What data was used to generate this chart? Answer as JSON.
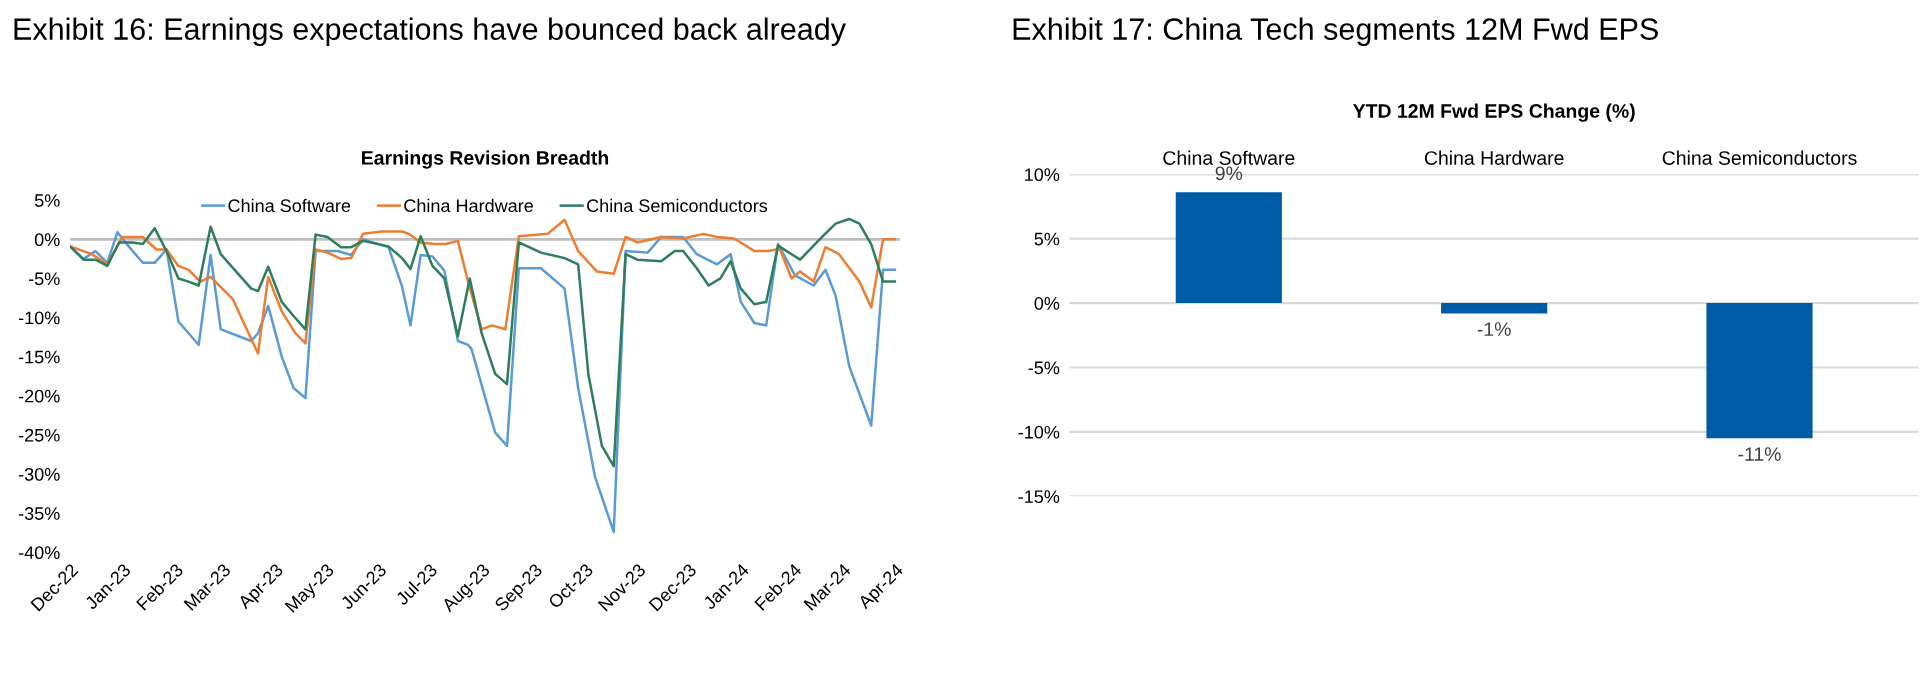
{
  "chart_data": [
    {
      "type": "line",
      "title": "Exhibit 16: Earnings expectations have bounced back already",
      "subtitle": "Earnings Revision Breadth",
      "xlim": [
        "2022-12-01",
        "2024-04-04"
      ],
      "xticks": [
        {
          "value": "2022-12",
          "label": "Dec-22"
        },
        {
          "value": "2023-01",
          "label": "Jan-23"
        },
        {
          "value": "2023-02",
          "label": "Feb-23"
        },
        {
          "value": "2023-03",
          "label": "Mar-23"
        },
        {
          "value": "2023-04",
          "label": "Apr-23"
        },
        {
          "value": "2023-05",
          "label": "May-23"
        },
        {
          "value": "2023-06",
          "label": "Jun-23"
        },
        {
          "value": "2023-07",
          "label": "Jul-23"
        },
        {
          "value": "2023-08",
          "label": "Aug-23"
        },
        {
          "value": "2023-09",
          "label": "Sep-23"
        },
        {
          "value": "2023-10",
          "label": "Oct-23"
        },
        {
          "value": "2023-11",
          "label": "Nov-23"
        },
        {
          "value": "2023-12",
          "label": "Dec-23"
        },
        {
          "value": "2024-01",
          "label": "Jan-24"
        },
        {
          "value": "2024-02",
          "label": "Feb-24"
        },
        {
          "value": "2024-03",
          "label": "Mar-24"
        },
        {
          "value": "2024-04",
          "label": "Apr-24"
        }
      ],
      "ylim": [
        -40,
        5
      ],
      "yticks": [
        {
          "value": 5,
          "label": "5%"
        },
        {
          "value": 0,
          "label": "0%"
        },
        {
          "value": -5,
          "label": "-5%"
        },
        {
          "value": -10,
          "label": "-10%"
        },
        {
          "value": -15,
          "label": "-15%"
        },
        {
          "value": -20,
          "label": "-20%"
        },
        {
          "value": -25,
          "label": "-25%"
        },
        {
          "value": -30,
          "label": "-30%"
        },
        {
          "value": -35,
          "label": "-35%"
        },
        {
          "value": -40,
          "label": "-40%"
        }
      ],
      "ref_lines": [
        {
          "axis": "y",
          "value": 0,
          "color": "#bfbfbf"
        }
      ],
      "legend": "top",
      "grid": false,
      "series": [
        {
          "name": "China Software",
          "color": "#5b9bd5",
          "x": [
            "2022-12-01",
            "2022-12-09",
            "2022-12-16",
            "2022-12-23",
            "2022-12-29",
            "2023-01-05",
            "2023-01-13",
            "2023-01-20",
            "2023-01-27",
            "2023-02-03",
            "2023-02-15",
            "2023-02-22",
            "2023-02-28",
            "2023-03-18",
            "2023-03-22",
            "2023-03-28",
            "2023-04-05",
            "2023-04-12",
            "2023-04-19",
            "2023-04-25",
            "2023-05-08",
            "2023-05-16",
            "2023-05-23",
            "2023-06-07",
            "2023-06-15",
            "2023-06-20",
            "2023-06-26",
            "2023-07-03",
            "2023-07-10",
            "2023-07-18",
            "2023-07-24",
            "2023-07-26",
            "2023-08-09",
            "2023-08-16",
            "2023-08-23",
            "2023-09-05",
            "2023-09-19",
            "2023-09-27",
            "2023-10-07",
            "2023-10-18",
            "2023-10-25",
            "2023-11-07",
            "2023-11-15",
            "2023-11-28",
            "2023-12-06",
            "2023-12-18",
            "2023-12-26",
            "2024-01-01",
            "2024-01-09",
            "2024-01-16",
            "2024-01-23",
            "2024-02-02",
            "2024-02-13",
            "2024-02-20",
            "2024-02-26",
            "2024-03-05",
            "2024-03-18",
            "2024-03-25",
            "2024-04-01"
          ],
          "values": [
            -0.9,
            -2.5,
            -1.5,
            -3,
            0.9,
            -1,
            -3,
            -3,
            -1.3,
            -10.5,
            -13.5,
            -2,
            -11.5,
            -13,
            -12,
            -8.5,
            -15,
            -19,
            -20.3,
            -1.5,
            -1.5,
            -2,
            0,
            -1,
            -6,
            -11,
            -2,
            -2.2,
            -4,
            -13,
            -13.5,
            -14,
            -24.7,
            -26.4,
            -3.7,
            -3.7,
            -6.3,
            -19,
            -30.4,
            -37.4,
            -1.5,
            -1.7,
            0.3,
            0.3,
            -1.9,
            -3.2,
            -1.9,
            -8,
            -10.7,
            -11,
            -0.6,
            -4.6,
            -5.9,
            -3.9,
            -7.2,
            -16.2,
            -23.8,
            -3.9,
            -3.9
          ]
        },
        {
          "name": "China Hardware",
          "color": "#ed7d31",
          "x": [
            "2022-12-01",
            "2022-12-14",
            "2022-12-23",
            "2023-01-01",
            "2023-01-13",
            "2023-01-21",
            "2023-01-27",
            "2023-02-03",
            "2023-02-09",
            "2023-02-16",
            "2023-02-22",
            "2023-03-07",
            "2023-03-22",
            "2023-03-28",
            "2023-04-05",
            "2023-04-13",
            "2023-04-19",
            "2023-04-25",
            "2023-05-02",
            "2023-05-10",
            "2023-05-16",
            "2023-05-23",
            "2023-06-03",
            "2023-06-15",
            "2023-06-19",
            "2023-06-26",
            "2023-07-04",
            "2023-07-11",
            "2023-07-18",
            "2023-07-24",
            "2023-08-01",
            "2023-08-07",
            "2023-08-15",
            "2023-08-23",
            "2023-09-09",
            "2023-09-19",
            "2023-09-27",
            "2023-10-08",
            "2023-10-18",
            "2023-10-25",
            "2023-11-01",
            "2023-11-15",
            "2023-11-28",
            "2023-12-10",
            "2023-12-18",
            "2023-12-28",
            "2024-01-09",
            "2024-01-17",
            "2024-01-24",
            "2024-01-31",
            "2024-02-05",
            "2024-02-13",
            "2024-02-20",
            "2024-02-28",
            "2024-03-11",
            "2024-03-18",
            "2024-03-25",
            "2024-04-01"
          ],
          "values": [
            -0.9,
            -1.9,
            -3.2,
            0.3,
            0.3,
            -1.3,
            -1.3,
            -3.4,
            -3.9,
            -5.4,
            -4.8,
            -7.6,
            -14.6,
            -4.8,
            -9.2,
            -12,
            -13.3,
            -1.3,
            -1.7,
            -2.5,
            -2.4,
            0.7,
            1,
            1,
            0.7,
            -0.4,
            -0.6,
            -0.6,
            -0.2,
            -5.4,
            -11.5,
            -11,
            -11.5,
            0.4,
            0.7,
            2.5,
            -1.5,
            -4.1,
            -4.4,
            0.3,
            -0.4,
            0.3,
            0.1,
            0.7,
            0.3,
            0.1,
            -1.5,
            -1.5,
            -1.2,
            -5,
            -4.1,
            -5.4,
            -1,
            -1.9,
            -5.4,
            -8.7,
            0,
            0
          ]
        },
        {
          "name": "China Semiconductors",
          "color": "#2e7d5b",
          "x": [
            "2022-12-01",
            "2022-12-09",
            "2022-12-16",
            "2022-12-23",
            "2022-12-30",
            "2023-01-07",
            "2023-01-13",
            "2023-01-20",
            "2023-01-27",
            "2023-02-03",
            "2023-02-09",
            "2023-02-15",
            "2023-02-22",
            "2023-02-28",
            "2023-03-18",
            "2023-03-22",
            "2023-03-28",
            "2023-04-05",
            "2023-04-12",
            "2023-04-19",
            "2023-04-25",
            "2023-05-02",
            "2023-05-10",
            "2023-05-16",
            "2023-05-23",
            "2023-06-07",
            "2023-06-15",
            "2023-06-20",
            "2023-06-26",
            "2023-07-03",
            "2023-07-10",
            "2023-07-18",
            "2023-07-25",
            "2023-08-01",
            "2023-08-09",
            "2023-08-16",
            "2023-08-23",
            "2023-09-05",
            "2023-09-19",
            "2023-09-27",
            "2023-10-03",
            "2023-10-11",
            "2023-10-18",
            "2023-10-25",
            "2023-11-01",
            "2023-11-15",
            "2023-11-23",
            "2023-11-28",
            "2023-12-06",
            "2023-12-13",
            "2023-12-20",
            "2023-12-26",
            "2024-01-01",
            "2024-01-09",
            "2024-01-16",
            "2024-01-23",
            "2024-02-05",
            "2024-02-18",
            "2024-02-26",
            "2024-03-05",
            "2024-03-11",
            "2024-03-18",
            "2024-03-25",
            "2024-04-01"
          ],
          "values": [
            -0.9,
            -2.6,
            -2.6,
            -3.4,
            -0.4,
            -0.4,
            -0.6,
            1.4,
            -1.5,
            -5,
            -5.4,
            -5.9,
            1.6,
            -1.9,
            -6.3,
            -6.6,
            -3.5,
            -8,
            -9.8,
            -11.5,
            0.6,
            0.3,
            -1,
            -1,
            -0.2,
            -0.9,
            -2.4,
            -3.8,
            0.4,
            -3.4,
            -5,
            -12.4,
            -5,
            -12,
            -17.2,
            -18.5,
            -0.4,
            -1.7,
            -2.4,
            -3.2,
            -17.2,
            -26.4,
            -29,
            -1.9,
            -2.6,
            -2.8,
            -1.5,
            -1.5,
            -3.7,
            -5.9,
            -5,
            -2.8,
            -6.3,
            -8.3,
            -8,
            -0.8,
            -2.6,
            0.3,
            2,
            2.6,
            2,
            -0.6,
            -5.4,
            -5.4
          ]
        }
      ]
    },
    {
      "type": "bar",
      "title": "Exhibit 17: China Tech segments 12M Fwd EPS",
      "subtitle": "YTD 12M Fwd EPS Change (%)",
      "categories": [
        "China Software",
        "China Hardware",
        "China Semiconductors"
      ],
      "values": [
        8.6,
        -0.8,
        -10.5
      ],
      "value_labels": [
        "9%",
        "-1%",
        "-11%"
      ],
      "color": "#005ba6",
      "ylim": [
        -15,
        10
      ],
      "yticks": [
        {
          "value": 10,
          "label": "10%"
        },
        {
          "value": 5,
          "label": "5%"
        },
        {
          "value": 0,
          "label": "0%"
        },
        {
          "value": -5,
          "label": "-5%"
        },
        {
          "value": -10,
          "label": "-10%"
        },
        {
          "value": -15,
          "label": "-15%"
        }
      ],
      "grid": "y",
      "legend": false
    }
  ]
}
